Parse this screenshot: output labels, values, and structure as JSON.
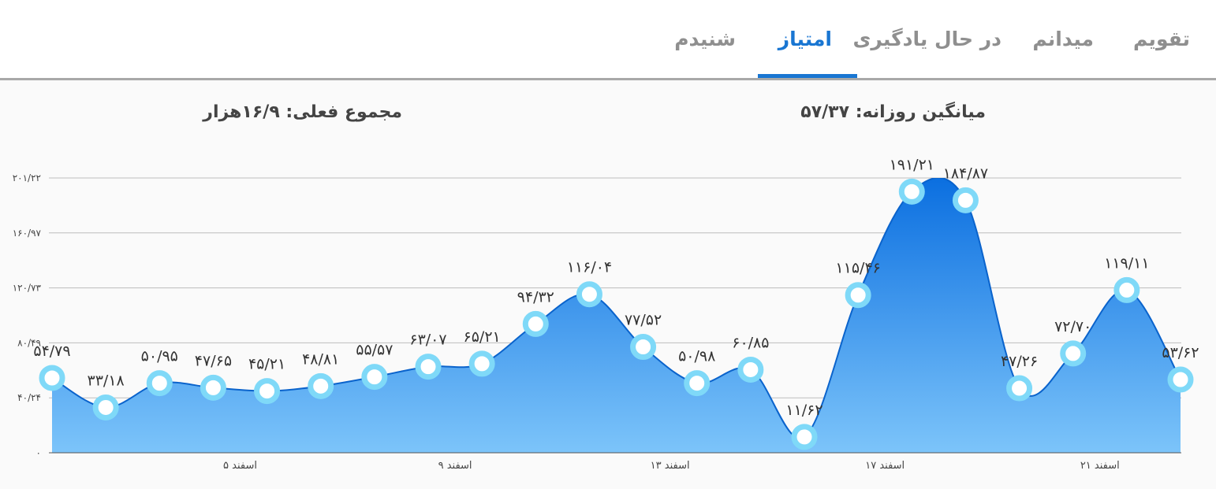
{
  "tabs": [
    {
      "label": "تقویم",
      "active": false
    },
    {
      "label": "میدانم",
      "active": false
    },
    {
      "label": "در حال یادگیری",
      "active": false
    },
    {
      "label": "امتیاز",
      "active": true
    },
    {
      "label": "شنیدم",
      "active": false
    }
  ],
  "stats": {
    "daily_average": "میانگین روزانه: ۵۷/۳۷",
    "current_total": "مجموع فعلی: ۱۶/۹هزار"
  },
  "colors": {
    "accent": "#1976d2",
    "area_top": "#0b6fe0",
    "area_bottom": "#7cc4fa",
    "marker_ring": "#7fd9f8"
  },
  "chart_data": {
    "type": "area",
    "title": "",
    "xlabel": "",
    "ylabel": "",
    "ylim": [
      0,
      201.22
    ],
    "y_ticks": [
      {
        "value": 0,
        "label": "۰"
      },
      {
        "value": 40.24,
        "label": "۴۰/۲۴"
      },
      {
        "value": 80.49,
        "label": "۸۰/۴۹"
      },
      {
        "value": 120.73,
        "label": "۱۲۰/۷۳"
      },
      {
        "value": 160.97,
        "label": "۱۶۰/۹۷"
      },
      {
        "value": 201.22,
        "label": "۲۰۱/۲۲"
      }
    ],
    "x_ticks": [
      {
        "index": 3.5,
        "label": "۵ اسفند"
      },
      {
        "index": 7.5,
        "label": "۹ اسفند"
      },
      {
        "index": 11.5,
        "label": "۱۳ اسفند"
      },
      {
        "index": 15.5,
        "label": "۱۷ اسفند"
      },
      {
        "index": 19.5,
        "label": "۲۱ اسفند"
      }
    ],
    "grid": true,
    "values": [
      54.79,
      33.18,
      50.95,
      47.65,
      45.21,
      48.81,
      55.57,
      63.07,
      65.21,
      94.32,
      116.04,
      77.52,
      50.98,
      60.85,
      11.62,
      115.46,
      191.21,
      184.87,
      47.26,
      72.7,
      119.11,
      53.62
    ],
    "labels": [
      "۵۴/۷۹",
      "۳۳/۱۸",
      "۵۰/۹۵",
      "۴۷/۶۵",
      "۴۵/۲۱",
      "۴۸/۸۱",
      "۵۵/۵۷",
      "۶۳/۰۷",
      "۶۵/۲۱",
      "۹۴/۳۲",
      "۱۱۶/۰۴",
      "۷۷/۵۲",
      "۵۰/۹۸",
      "۶۰/۸۵",
      "۱۱/۶۲",
      "۱۱۵/۴۶",
      "۱۹۱/۲۱",
      "۱۸۴/۸۷",
      "۴۷/۲۶",
      "۷۲/۷۰",
      "۱۱۹/۱۱",
      "۵۳/۶۲"
    ]
  }
}
